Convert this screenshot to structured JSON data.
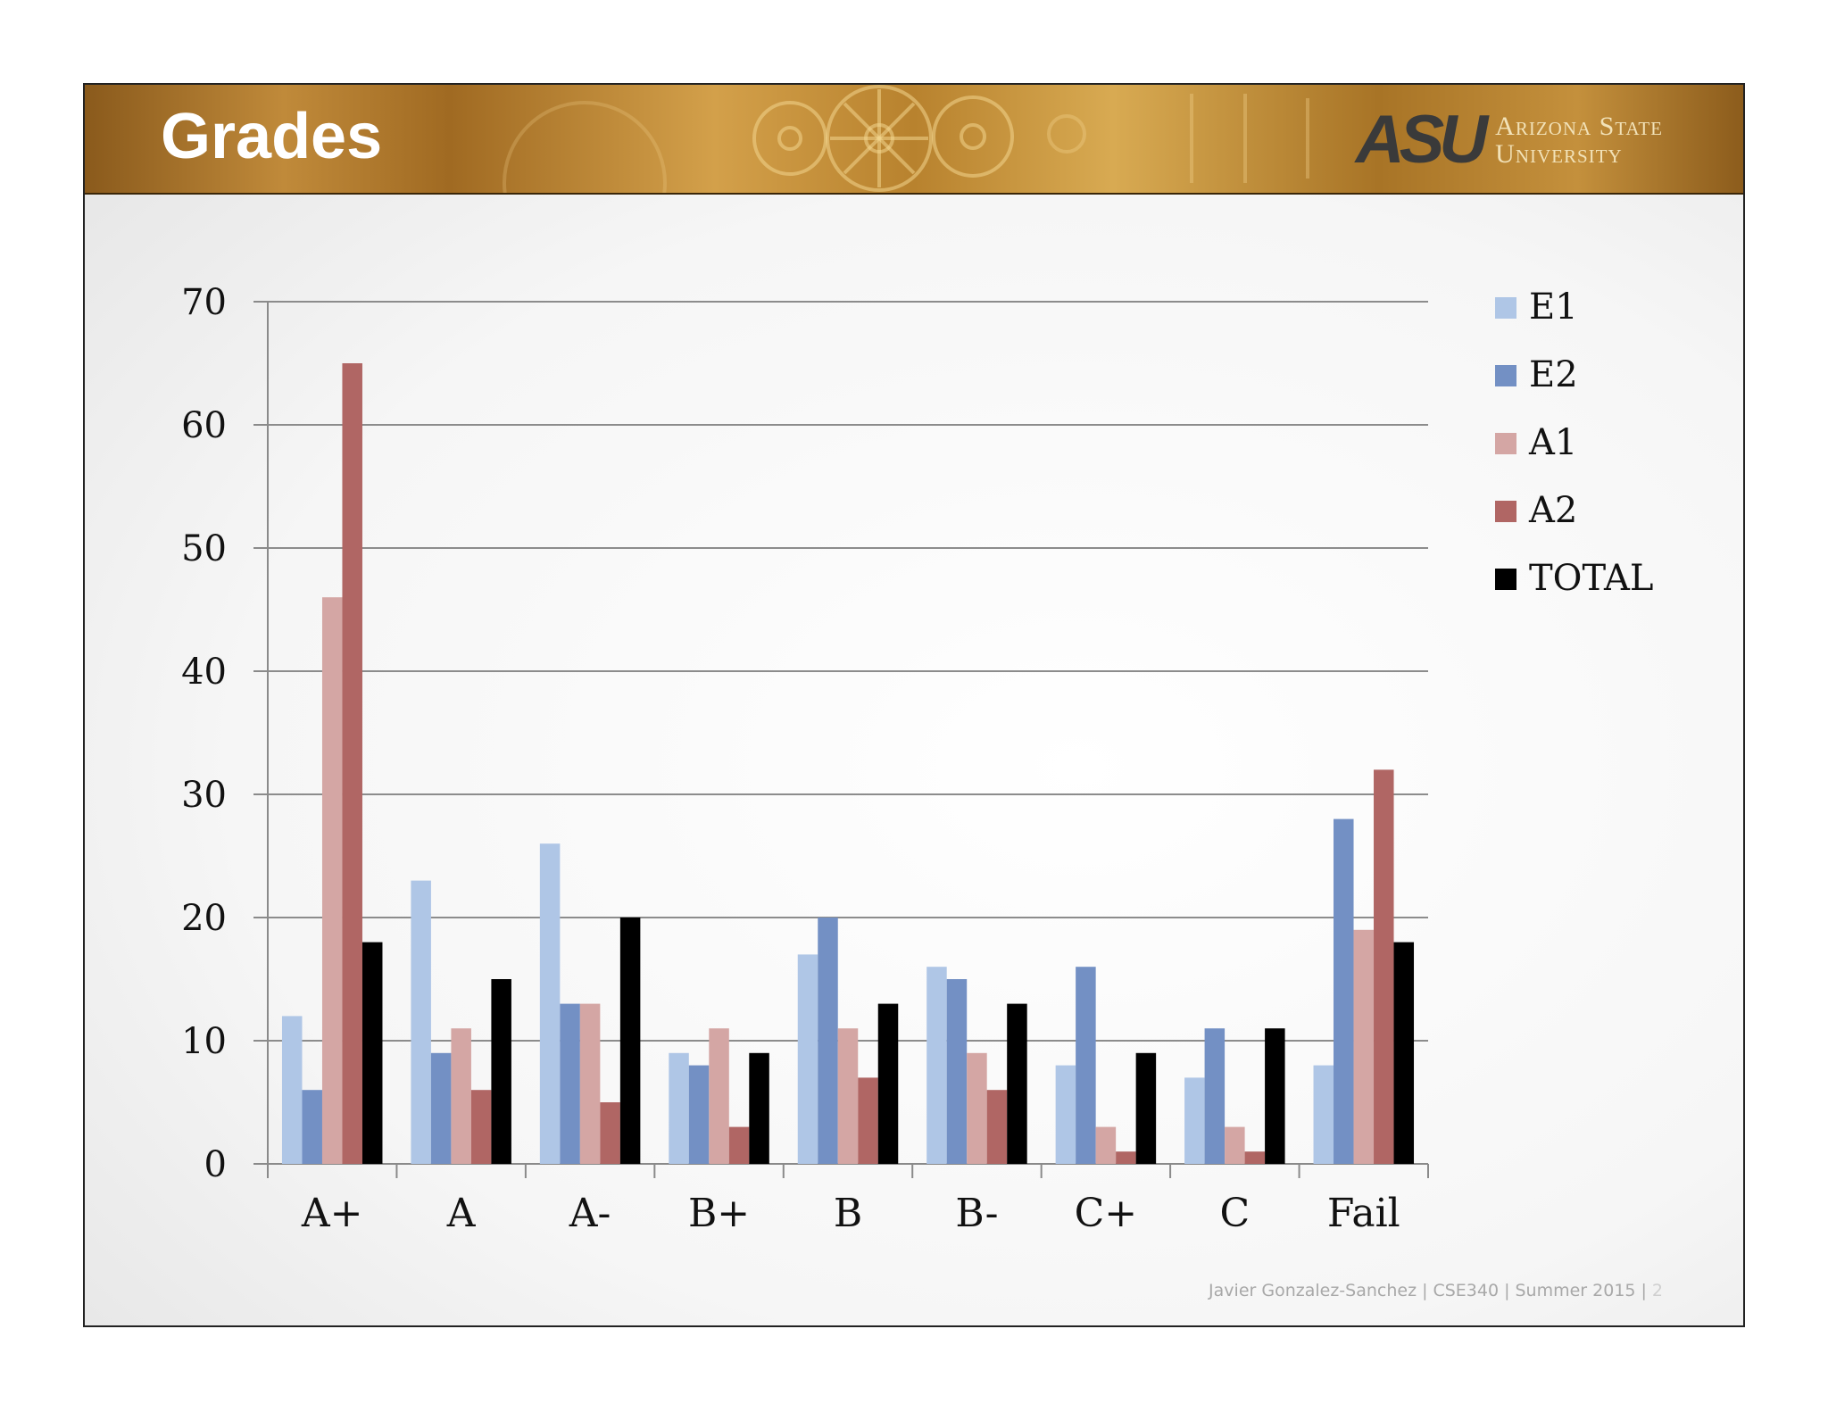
{
  "slide": {
    "title": "Grades",
    "logo_mark": "ASU",
    "logo_line1": "Arizona State",
    "logo_line2": "University",
    "footer": {
      "author": "Javier Gonzalez-Sanchez",
      "course": "CSE340",
      "term": "Summer 2015",
      "page": "2"
    }
  },
  "chart_data": {
    "type": "bar",
    "title": "",
    "xlabel": "",
    "ylabel": "",
    "categories": [
      "A+",
      "A",
      "A-",
      "B+",
      "B",
      "B-",
      "C+",
      "C",
      "Fail"
    ],
    "ylim": [
      0,
      70
    ],
    "yticks": [
      0,
      10,
      20,
      30,
      40,
      50,
      60,
      70
    ],
    "grid": true,
    "legend": "right",
    "series": [
      {
        "name": "E1",
        "color": "#afc6e6",
        "values": [
          12,
          23,
          26,
          9,
          17,
          16,
          8,
          7,
          8
        ]
      },
      {
        "name": "E2",
        "color": "#7390c4",
        "values": [
          6,
          9,
          13,
          8,
          20,
          15,
          16,
          11,
          28
        ]
      },
      {
        "name": "A1",
        "color": "#d4a6a4",
        "values": [
          46,
          11,
          13,
          11,
          11,
          9,
          3,
          3,
          19
        ]
      },
      {
        "name": "A2",
        "color": "#b06664",
        "values": [
          65,
          6,
          5,
          3,
          7,
          6,
          1,
          1,
          32
        ]
      },
      {
        "name": "TOTAL",
        "color": "#000000",
        "values": [
          18,
          15,
          20,
          9,
          13,
          13,
          9,
          11,
          18
        ]
      }
    ]
  }
}
